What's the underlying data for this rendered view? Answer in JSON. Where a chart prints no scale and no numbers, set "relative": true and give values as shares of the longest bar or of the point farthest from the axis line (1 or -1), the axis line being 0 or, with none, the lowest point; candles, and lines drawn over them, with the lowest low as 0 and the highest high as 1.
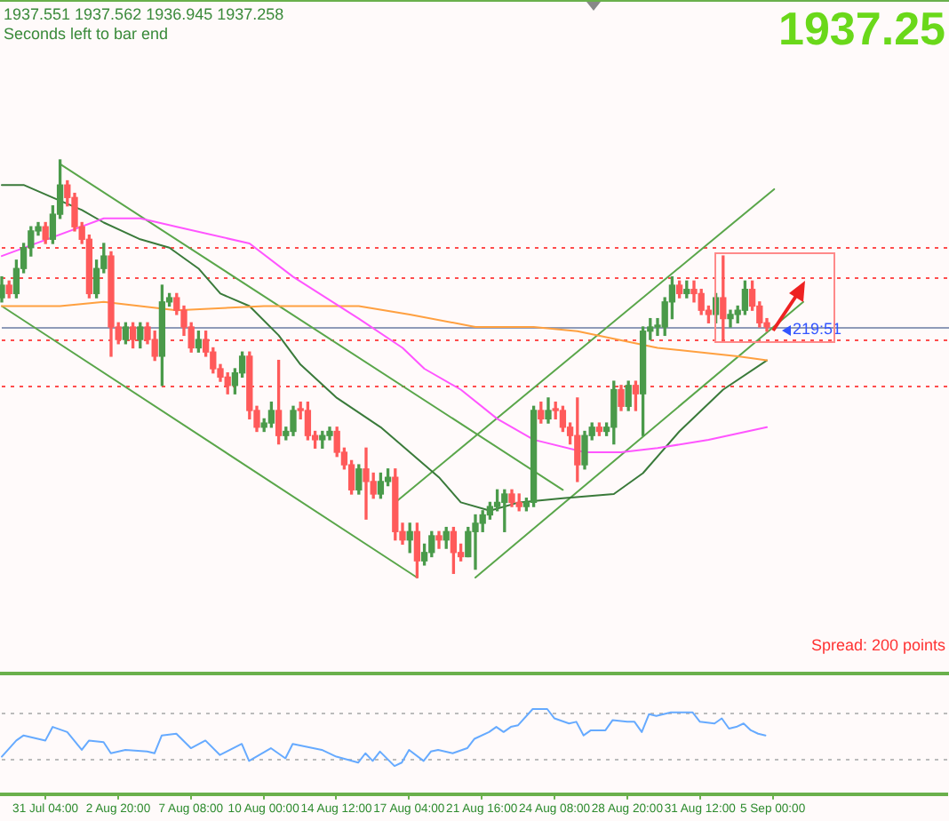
{
  "chart_data": [
    {
      "type": "candlestick",
      "relative": true,
      "tick_labels": false,
      "categories": [
        null,
        null,
        null,
        null,
        null,
        null,
        null,
        null,
        null,
        null,
        null,
        null,
        null,
        null,
        null,
        null,
        null,
        null,
        null,
        null,
        null,
        null,
        null,
        null,
        null,
        null,
        null,
        null,
        null,
        null,
        null,
        null,
        null,
        null,
        null,
        null,
        null,
        null,
        null,
        null,
        null,
        null,
        null,
        null,
        null,
        null,
        null,
        null,
        null,
        null,
        null,
        null,
        null,
        null,
        null,
        null,
        null,
        null,
        null,
        null,
        null,
        null,
        null,
        null,
        null,
        null,
        null,
        null,
        null,
        null,
        null,
        null,
        null,
        null,
        null,
        null,
        null,
        null,
        null,
        null,
        null,
        null,
        null,
        null,
        null,
        null,
        null,
        null,
        null,
        null,
        null,
        null,
        null,
        null,
        null,
        null,
        null,
        null,
        null,
        null,
        null,
        null,
        null,
        null,
        null,
        null,
        null,
        null,
        null,
        null,
        null,
        null,
        null,
        null,
        null,
        null,
        null,
        null,
        null,
        null,
        null,
        null,
        null,
        null,
        null,
        null,
        null,
        null,
        null,
        null,
        null
      ],
      "ohlc": [
        [
          0.67,
          0.72,
          0.66,
          0.7
        ],
        [
          0.7,
          0.71,
          0.67,
          0.68
        ],
        [
          0.68,
          0.76,
          0.67,
          0.74
        ],
        [
          0.74,
          0.8,
          0.73,
          0.79
        ],
        [
          0.79,
          0.84,
          0.77,
          0.83
        ],
        [
          0.83,
          0.85,
          0.82,
          0.84
        ],
        [
          0.84,
          0.85,
          0.8,
          0.81
        ],
        [
          0.81,
          0.89,
          0.8,
          0.87
        ],
        [
          0.87,
          1,
          0.86,
          0.94
        ],
        [
          0.94,
          0.95,
          0.89,
          0.91
        ],
        [
          0.91,
          0.92,
          0.83,
          0.84
        ],
        [
          0.84,
          0.85,
          0.8,
          0.81
        ],
        [
          0.81,
          0.82,
          0.67,
          0.68
        ],
        [
          0.68,
          0.76,
          0.67,
          0.74
        ],
        [
          0.74,
          0.8,
          0.73,
          0.77
        ],
        [
          0.77,
          0.78,
          0.53,
          0.6
        ],
        [
          0.6,
          0.61,
          0.56,
          0.57
        ],
        [
          0.57,
          0.61,
          0.56,
          0.6
        ],
        [
          0.6,
          0.61,
          0.55,
          0.57
        ],
        [
          0.57,
          0.61,
          0.55,
          0.6
        ],
        [
          0.6,
          0.61,
          0.56,
          0.57
        ],
        [
          0.57,
          0.59,
          0.52,
          0.53
        ],
        [
          0.53,
          0.7,
          0.46,
          0.66
        ],
        [
          0.66,
          0.68,
          0.65,
          0.67
        ],
        [
          0.67,
          0.68,
          0.63,
          0.64
        ],
        [
          0.64,
          0.65,
          0.58,
          0.6
        ],
        [
          0.6,
          0.61,
          0.54,
          0.55
        ],
        [
          0.55,
          0.59,
          0.54,
          0.57
        ],
        [
          0.57,
          0.59,
          0.53,
          0.54
        ],
        [
          0.54,
          0.55,
          0.49,
          0.5
        ],
        [
          0.5,
          0.51,
          0.47,
          0.48
        ],
        [
          0.48,
          0.49,
          0.44,
          0.46
        ],
        [
          0.46,
          0.5,
          0.44,
          0.49
        ],
        [
          0.49,
          0.54,
          0.48,
          0.53
        ],
        [
          0.53,
          0.54,
          0.38,
          0.4
        ],
        [
          0.4,
          0.41,
          0.35,
          0.36
        ],
        [
          0.36,
          0.38,
          0.35,
          0.37
        ],
        [
          0.37,
          0.42,
          0.36,
          0.4
        ],
        [
          0.4,
          0.52,
          0.32,
          0.34
        ],
        [
          0.34,
          0.36,
          0.33,
          0.35
        ],
        [
          0.35,
          0.41,
          0.34,
          0.4
        ],
        [
          0.4,
          0.42,
          0.38,
          0.4
        ],
        [
          0.4,
          0.42,
          0.33,
          0.34
        ],
        [
          0.34,
          0.35,
          0.31,
          0.33
        ],
        [
          0.33,
          0.35,
          0.31,
          0.34
        ],
        [
          0.34,
          0.36,
          0.33,
          0.35
        ],
        [
          0.35,
          0.36,
          0.29,
          0.3
        ],
        [
          0.3,
          0.31,
          0.26,
          0.27
        ],
        [
          0.27,
          0.28,
          0.2,
          0.21
        ],
        [
          0.21,
          0.27,
          0.2,
          0.26
        ],
        [
          0.26,
          0.31,
          0.14,
          0.23
        ],
        [
          0.23,
          0.25,
          0.19,
          0.2
        ],
        [
          0.2,
          0.25,
          0.19,
          0.23
        ],
        [
          0.23,
          0.26,
          0.22,
          0.24
        ],
        [
          0.24,
          0.26,
          0.09,
          0.11
        ],
        [
          0.11,
          0.13,
          0.08,
          0.09
        ],
        [
          0.09,
          0.13,
          0.06,
          0.11
        ],
        [
          0.11,
          0.13,
          0,
          0.04
        ],
        [
          0.04,
          0.08,
          0.03,
          0.06
        ],
        [
          0.06,
          0.11,
          0.05,
          0.1
        ],
        [
          0.1,
          0.11,
          0.07,
          0.09
        ],
        [
          0.09,
          0.12,
          0.07,
          0.11
        ],
        [
          0.11,
          0.12,
          0.01,
          0.06
        ],
        [
          0.06,
          0.08,
          0.04,
          0.05
        ],
        [
          0.05,
          0.12,
          0.05,
          0.11
        ],
        [
          0.11,
          0.15,
          0.02,
          0.13
        ],
        [
          0.13,
          0.16,
          0.11,
          0.15
        ],
        [
          0.15,
          0.18,
          0.14,
          0.17
        ],
        [
          0.17,
          0.21,
          0.16,
          0.18
        ],
        [
          0.18,
          0.21,
          0.11,
          0.2
        ],
        [
          0.2,
          0.21,
          0.17,
          0.18
        ],
        [
          0.18,
          0.2,
          0.16,
          0.17
        ],
        [
          0.17,
          0.19,
          0.16,
          0.18
        ],
        [
          0.18,
          0.41,
          0.17,
          0.4
        ],
        [
          0.4,
          0.42,
          0.37,
          0.38
        ],
        [
          0.38,
          0.43,
          0.37,
          0.4
        ],
        [
          0.4,
          0.42,
          0.38,
          0.4
        ],
        [
          0.4,
          0.41,
          0.35,
          0.36
        ],
        [
          0.36,
          0.37,
          0.32,
          0.34
        ],
        [
          0.34,
          0.43,
          0.23,
          0.27
        ],
        [
          0.27,
          0.35,
          0.26,
          0.34
        ],
        [
          0.34,
          0.37,
          0.33,
          0.36
        ],
        [
          0.36,
          0.37,
          0.34,
          0.35
        ],
        [
          0.35,
          0.37,
          0.34,
          0.36
        ],
        [
          0.36,
          0.47,
          0.32,
          0.45
        ],
        [
          0.45,
          0.46,
          0.4,
          0.41
        ],
        [
          0.41,
          0.47,
          0.4,
          0.46
        ],
        [
          0.46,
          0.47,
          0.4,
          0.44
        ],
        [
          0.44,
          0.6,
          0.34,
          0.59
        ],
        [
          0.59,
          0.62,
          0.57,
          0.6
        ],
        [
          0.6,
          0.62,
          0.58,
          0.6
        ],
        [
          0.6,
          0.67,
          0.58,
          0.66
        ],
        [
          0.66,
          0.72,
          0.62,
          0.7
        ],
        [
          0.7,
          0.71,
          0.67,
          0.68
        ],
        [
          0.68,
          0.71,
          0.67,
          0.69
        ],
        [
          0.69,
          0.71,
          0.66,
          0.68
        ],
        [
          0.68,
          0.69,
          0.63,
          0.64
        ],
        [
          0.64,
          0.65,
          0.61,
          0.63
        ],
        [
          0.63,
          0.68,
          0.61,
          0.67
        ],
        [
          0.67,
          0.77,
          0.57,
          0.62
        ],
        [
          0.62,
          0.64,
          0.6,
          0.63
        ],
        [
          0.63,
          0.65,
          0.61,
          0.64
        ],
        [
          0.64,
          0.71,
          0.63,
          0.69
        ],
        [
          0.69,
          0.71,
          0.64,
          0.65
        ],
        [
          0.65,
          0.66,
          0.6,
          0.61
        ],
        [
          0.61,
          0.62,
          0.59,
          0.6
        ],
        null,
        null,
        null,
        null,
        null,
        null,
        null,
        null,
        null,
        null,
        null,
        null,
        null,
        null,
        null,
        null,
        null,
        null,
        null,
        null,
        null,
        null,
        null,
        null,
        null
      ],
      "colors": [
        "#4a9a4a",
        "#ff5a5a",
        "#4a9a4a",
        "#4a9a4a",
        "#4a9a4a",
        "#4a9a4a",
        "#ff5a5a",
        "#4a9a4a",
        "#4a9a4a",
        "#ff5a5a",
        "#ff5a5a",
        "#ff5a5a",
        "#ff5a5a",
        "#4a9a4a",
        "#4a9a4a",
        "#ff5a5a",
        "#ff5a5a",
        "#4a9a4a",
        "#ff5a5a",
        "#4a9a4a",
        "#ff5a5a",
        "#ff5a5a",
        "#4a9a4a",
        "#4a9a4a",
        "#ff5a5a",
        "#ff5a5a",
        "#ff5a5a",
        "#4a9a4a",
        "#ff5a5a",
        "#ff5a5a",
        "#ff5a5a",
        "#ff5a5a",
        "#4a9a4a",
        "#4a9a4a",
        "#ff5a5a",
        "#ff5a5a",
        "#4a9a4a",
        "#4a9a4a",
        "#ff5a5a",
        "#4a9a4a",
        "#4a9a4a",
        "#ff5a5a",
        "#ff5a5a",
        "#ff5a5a",
        "#4a9a4a",
        "#4a9a4a",
        "#ff5a5a",
        "#ff5a5a",
        "#ff5a5a",
        "#4a9a4a",
        "#ff5a5a",
        "#ff5a5a",
        "#4a9a4a",
        "#4a9a4a",
        "#ff5a5a",
        "#ff5a5a",
        "#4a9a4a",
        "#ff5a5a",
        "#4a9a4a",
        "#4a9a4a",
        "#ff5a5a",
        "#4a9a4a",
        "#ff5a5a",
        "#ff5a5a",
        "#4a9a4a",
        "#4a9a4a",
        "#4a9a4a",
        "#4a9a4a",
        "#4a9a4a",
        "#4a9a4a",
        "#ff5a5a",
        "#ff5a5a",
        "#4a9a4a",
        "#4a9a4a",
        "#ff5a5a",
        "#4a9a4a",
        "#ff5a5a",
        "#ff5a5a",
        "#ff5a5a",
        "#ff5a5a",
        "#4a9a4a",
        "#4a9a4a",
        "#ff5a5a",
        "#4a9a4a",
        "#4a9a4a",
        "#ff5a5a",
        "#4a9a4a",
        "#ff5a5a",
        "#4a9a4a",
        "#4a9a4a",
        "#4a9a4a",
        "#4a9a4a",
        "#4a9a4a",
        "#ff5a5a",
        "#4a9a4a",
        "#ff5a5a",
        "#ff5a5a",
        "#ff5a5a",
        "#4a9a4a",
        "#ff5a5a",
        "#4a9a4a",
        "#4a9a4a",
        "#4a9a4a",
        "#ff5a5a",
        "#ff5a5a",
        "#ff5a5a",
        null,
        null,
        null,
        null,
        null,
        null,
        null,
        null,
        null,
        null,
        null,
        null,
        null,
        null,
        null,
        null,
        null,
        null,
        null,
        null,
        null,
        null,
        null,
        null,
        null
      ],
      "series": [
        {
          "type": "line",
          "color": "#ff55ff",
          "values": [
            0.77,
            null,
            null,
            null,
            null,
            null,
            null,
            null,
            null,
            null,
            null,
            null,
            null,
            null,
            0.86,
            null,
            null,
            null,
            null,
            0.86,
            null,
            null,
            null,
            null,
            0.84,
            null,
            null,
            null,
            null,
            null,
            null,
            null,
            null,
            null,
            0.8,
            null,
            null,
            null,
            null,
            null,
            0.72,
            null,
            null,
            null,
            null,
            null,
            null,
            null,
            null,
            0.62,
            null,
            null,
            null,
            null,
            null,
            0.55,
            null,
            null,
            0.5,
            null,
            null,
            null,
            null,
            0.45,
            null,
            null,
            null,
            null,
            0.38,
            null,
            null,
            null,
            null,
            0.33,
            null,
            null,
            null,
            null,
            null,
            null,
            0.3,
            null,
            null,
            null,
            null,
            0.3,
            null,
            null,
            null,
            null,
            0.31,
            null,
            null,
            null,
            null,
            null,
            null,
            0.33,
            null,
            null,
            null,
            null,
            null,
            null,
            null,
            0.36,
            null,
            null,
            null,
            null,
            null,
            null,
            null,
            null,
            null,
            null,
            null,
            null,
            null,
            null,
            null,
            null,
            null,
            null,
            null,
            null,
            null,
            null,
            null,
            null,
            null
          ]
        },
        {
          "type": "line",
          "color": "#ffa040",
          "values": [
            0.65,
            null,
            null,
            null,
            null,
            null,
            null,
            null,
            0.65,
            null,
            null,
            null,
            null,
            null,
            0.66,
            null,
            null,
            null,
            null,
            null,
            null,
            null,
            null,
            null,
            0.64,
            null,
            null,
            null,
            null,
            null,
            null,
            null,
            null,
            null,
            null,
            null,
            0.65,
            null,
            null,
            null,
            null,
            null,
            null,
            null,
            null,
            null,
            null,
            null,
            null,
            0.65,
            null,
            null,
            null,
            null,
            null,
            null,
            0.63,
            null,
            null,
            null,
            null,
            null,
            null,
            null,
            null,
            0.6,
            null,
            null,
            null,
            null,
            null,
            null,
            null,
            0.6,
            null,
            null,
            null,
            null,
            null,
            0.59,
            null,
            null,
            null,
            null,
            null,
            null,
            null,
            null,
            null,
            null,
            0.55,
            null,
            null,
            null,
            null,
            null,
            null,
            null,
            null,
            null,
            null,
            0.53,
            null,
            null,
            null,
            0.52,
            null,
            null,
            null,
            null,
            null,
            null,
            null,
            null,
            null,
            null,
            null,
            null,
            null,
            null,
            null,
            null,
            null,
            null,
            null,
            null,
            null,
            null,
            null,
            null,
            null
          ]
        },
        {
          "type": "line",
          "color": "#3a7a3a",
          "values": [
            0.94,
            null,
            null,
            0.94,
            null,
            null,
            null,
            0.91,
            null,
            null,
            null,
            0.88,
            null,
            null,
            0.85,
            null,
            null,
            null,
            null,
            0.81,
            null,
            null,
            null,
            0.79,
            null,
            null,
            null,
            0.74,
            null,
            null,
            0.68,
            null,
            null,
            null,
            0.65,
            null,
            null,
            null,
            0.58,
            null,
            null,
            0.51,
            null,
            null,
            null,
            null,
            0.43,
            null,
            null,
            null,
            null,
            null,
            0.36,
            null,
            null,
            null,
            0.3,
            null,
            null,
            null,
            0.24,
            null,
            null,
            0.18,
            null,
            null,
            null,
            0.16,
            null,
            null,
            null,
            0.18,
            null,
            null,
            null,
            null,
            null,
            0.19,
            null,
            null,
            null,
            null,
            null,
            null,
            0.2,
            null,
            null,
            null,
            0.25,
            null,
            null,
            null,
            null,
            0.35,
            null,
            null,
            null,
            null,
            null,
            0.45,
            null,
            null,
            null,
            null,
            null,
            0.52,
            null,
            null,
            null,
            null,
            null,
            null,
            null,
            null,
            null,
            null,
            null,
            null,
            null,
            null,
            null,
            null,
            null,
            null,
            null,
            null,
            null,
            null,
            null,
            null,
            null
          ]
        },
        {
          "type": "line",
          "color": "#5aa64a",
          "values": [
            null,
            null,
            null,
            null,
            null,
            null,
            null,
            null,
            0.99,
            null,
            null,
            null,
            null,
            null,
            null,
            null,
            null,
            null,
            null,
            null,
            null,
            null,
            null,
            null,
            null,
            null,
            null,
            null,
            null,
            null,
            null,
            null,
            null,
            null,
            null,
            null,
            null,
            null,
            null,
            null,
            null,
            null,
            null,
            null,
            null,
            null,
            null,
            null,
            null,
            null,
            null,
            null,
            null,
            null,
            null,
            null,
            null,
            null,
            null,
            null,
            null,
            null,
            null,
            null,
            null,
            null,
            null,
            null,
            null,
            null,
            null,
            null,
            null,
            null,
            null,
            null,
            null,
            0.21,
            null,
            null,
            null,
            null,
            null,
            null,
            null,
            null,
            null,
            null,
            null,
            null,
            null,
            null,
            null,
            null,
            null,
            null,
            null,
            null,
            null,
            null,
            null,
            null,
            null,
            null,
            null,
            null,
            null,
            null,
            null,
            null,
            null,
            null,
            null,
            null,
            null,
            null,
            null,
            null,
            null,
            null,
            null,
            null,
            null,
            null,
            null,
            null,
            null,
            null,
            null,
            null,
            null
          ]
        },
        {
          "type": "line",
          "color": "#5aa64a",
          "values": [
            0.65,
            null,
            null,
            null,
            null,
            null,
            null,
            null,
            null,
            null,
            null,
            null,
            null,
            null,
            null,
            null,
            null,
            null,
            null,
            null,
            null,
            null,
            null,
            null,
            null,
            null,
            null,
            null,
            null,
            null,
            null,
            null,
            null,
            null,
            null,
            null,
            null,
            null,
            null,
            null,
            null,
            null,
            null,
            null,
            null,
            null,
            null,
            null,
            null,
            null,
            null,
            null,
            null,
            null,
            null,
            null,
            null,
            0,
            null,
            null,
            null,
            null,
            null,
            null,
            null,
            null,
            null,
            null,
            null,
            null,
            null,
            null,
            null,
            null,
            null,
            null,
            null,
            null,
            null,
            null,
            null,
            null,
            null,
            null,
            null,
            null,
            null,
            null,
            null,
            null,
            null,
            null,
            null,
            null,
            null,
            null,
            null,
            null,
            null,
            null,
            null,
            null,
            null,
            null,
            null,
            null,
            null,
            null,
            null,
            null,
            null,
            null,
            null,
            null,
            null,
            null,
            null,
            null,
            null,
            null,
            null,
            null,
            null,
            null,
            null,
            null,
            null,
            null,
            null,
            null,
            null
          ]
        },
        {
          "type": "line",
          "color": "#5aa64a",
          "values": [
            null,
            null,
            null,
            null,
            null,
            null,
            null,
            null,
            null,
            null,
            null,
            null,
            null,
            null,
            null,
            null,
            null,
            null,
            null,
            null,
            null,
            null,
            null,
            null,
            null,
            null,
            null,
            null,
            null,
            null,
            null,
            null,
            null,
            null,
            null,
            null,
            null,
            null,
            null,
            null,
            null,
            null,
            null,
            null,
            null,
            null,
            null,
            null,
            null,
            null,
            null,
            null,
            null,
            null,
            null,
            null,
            null,
            null,
            null,
            null,
            null,
            null,
            null,
            null,
            null,
            0,
            null,
            null,
            null,
            null,
            null,
            null,
            null,
            null,
            null,
            null,
            null,
            null,
            null,
            null,
            null,
            null,
            null,
            null,
            null,
            null,
            null,
            null,
            null,
            null,
            null,
            null,
            null,
            null,
            null,
            null,
            null,
            null,
            null,
            null,
            null,
            null,
            null,
            null,
            null,
            null,
            null,
            null,
            null,
            null,
            0.66,
            null,
            null,
            null,
            null,
            null,
            null,
            null,
            null,
            null,
            null,
            null,
            null,
            null,
            null,
            null,
            null,
            null,
            null,
            null,
            null
          ]
        },
        {
          "type": "line",
          "color": "#5aa64a",
          "values": [
            null,
            null,
            null,
            null,
            null,
            null,
            null,
            null,
            null,
            null,
            null,
            null,
            null,
            null,
            null,
            null,
            null,
            null,
            null,
            null,
            null,
            null,
            null,
            null,
            null,
            null,
            null,
            null,
            null,
            null,
            null,
            null,
            null,
            null,
            null,
            null,
            null,
            null,
            null,
            null,
            null,
            null,
            null,
            null,
            null,
            null,
            null,
            null,
            null,
            null,
            null,
            null,
            null,
            null,
            0.18,
            null,
            null,
            null,
            null,
            null,
            null,
            null,
            null,
            null,
            null,
            null,
            null,
            null,
            null,
            null,
            null,
            null,
            null,
            null,
            null,
            null,
            null,
            null,
            null,
            null,
            null,
            null,
            null,
            null,
            null,
            null,
            null,
            null,
            null,
            null,
            null,
            null,
            null,
            null,
            null,
            null,
            null,
            null,
            null,
            null,
            null,
            null,
            null,
            null,
            null,
            null,
            0.93,
            null,
            null,
            null,
            null,
            null,
            null,
            null,
            null,
            null,
            null,
            null,
            null,
            null,
            null,
            null,
            null,
            null,
            null,
            null,
            null,
            null,
            null,
            null,
            null
          ]
        }
      ],
      "ref_lines": [
        {
          "axis": "y",
          "value": 0.79,
          "color": "#ff4d4d",
          "line_style": "dotted"
        },
        {
          "axis": "y",
          "value": 0.72,
          "color": "#ff4d4d",
          "line_style": "dotted"
        },
        {
          "axis": "y",
          "value": 0.6,
          "color": "#8f9bb8",
          "line_style": "solid"
        },
        {
          "axis": "y",
          "value": 0.57,
          "color": "#ff4d4d",
          "line_style": "dotted"
        },
        {
          "axis": "y",
          "value": 0.46,
          "color": "#ff4d4d",
          "line_style": "dotted"
        }
      ],
      "annotations": [
        "1937.551 1937.562 1936.945 1937.258",
        "Seconds left to bar end",
        "1937.25",
        "219:51",
        "Spread: 200 points"
      ]
    },
    {
      "type": "line",
      "relative": true,
      "tick_labels": "x",
      "categories": [
        null,
        null,
        null,
        null,
        null,
        null,
        "31 Jul 04:00",
        null,
        null,
        null,
        null,
        null,
        null,
        null,
        null,
        null,
        "2 Aug 20:00",
        null,
        null,
        null,
        null,
        null,
        null,
        null,
        null,
        null,
        "7 Aug 08:00",
        null,
        null,
        null,
        null,
        null,
        null,
        null,
        null,
        null,
        "10 Aug 00:00",
        null,
        null,
        null,
        null,
        null,
        null,
        null,
        null,
        null,
        "14 Aug 12:00",
        null,
        null,
        null,
        null,
        null,
        null,
        null,
        null,
        null,
        "17 Aug 04:00",
        null,
        null,
        null,
        null,
        null,
        null,
        null,
        null,
        null,
        "21 Aug 16:00",
        null,
        null,
        null,
        null,
        null,
        null,
        null,
        null,
        null,
        "24 Aug 08:00",
        null,
        null,
        null,
        null,
        null,
        null,
        null,
        null,
        null,
        "28 Aug 20:00",
        null,
        null,
        null,
        null,
        null,
        null,
        null,
        null,
        null,
        "31 Aug 12:00",
        null,
        null,
        null,
        null,
        null,
        null,
        null,
        null,
        null,
        "5 Sep 00:00",
        null,
        null,
        null,
        null,
        null,
        null,
        null,
        null,
        null,
        null,
        null,
        null,
        null,
        null,
        null,
        null,
        null,
        null,
        null,
        null,
        null,
        null,
        null,
        null
      ],
      "series": [
        {
          "color": "#66aaff",
          "values": [
            0.44,
            null,
            0.63,
            0.69,
            null,
            null,
            0.63,
            0.79,
            null,
            0.73,
            null,
            0.52,
            0.63,
            null,
            0.61,
            0.48,
            null,
            0.52,
            null,
            null,
            0.5,
            0.48,
            0.69,
            null,
            0.71,
            null,
            0.54,
            null,
            0.63,
            null,
            0.46,
            null,
            null,
            0.59,
            0.39,
            null,
            null,
            0.54,
            null,
            0.42,
            0.59,
            null,
            null,
            null,
            0.52,
            null,
            0.44,
            null,
            null,
            0.37,
            0.48,
            0.39,
            0.5,
            null,
            0.33,
            0.37,
            0.52,
            null,
            0.39,
            0.5,
            0.52,
            null,
            0.48,
            null,
            0.54,
            0.65,
            null,
            0.73,
            0.79,
            0.73,
            0.79,
            0.81,
            null,
            1,
            null,
            1,
            0.89,
            null,
            0.83,
            0.85,
            0.69,
            0.75,
            null,
            0.75,
            0.87,
            null,
            0.85,
            0.85,
            0.73,
            0.94,
            0.92,
            null,
            0.96,
            null,
            null,
            0.96,
            0.85,
            null,
            0.83,
            0.89,
            0.77,
            0.79,
            0.83,
            0.75,
            0.71,
            0.69,
            null,
            null,
            null,
            null,
            null,
            null,
            null,
            null,
            null,
            null,
            null,
            null,
            null,
            null,
            null,
            null,
            null,
            null,
            null,
            null,
            null,
            null,
            null,
            null,
            null
          ]
        }
      ],
      "ref_lines": [
        {
          "axis": "y",
          "value": 0.96,
          "color": "#bbbbbb",
          "line_style": "dotted"
        },
        {
          "axis": "y",
          "value": 0.42,
          "color": "#bbbbbb",
          "line_style": "dotted"
        }
      ]
    }
  ]
}
